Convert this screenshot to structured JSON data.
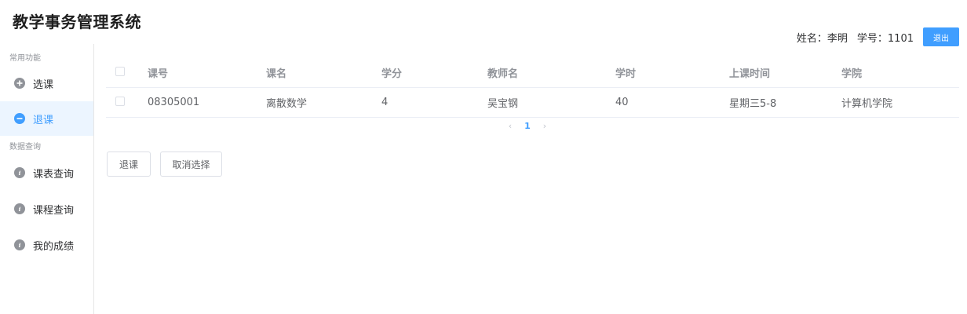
{
  "app": {
    "title": "教学事务管理系统"
  },
  "user": {
    "name_label": "姓名：",
    "name": "李明",
    "id_label": "学号：",
    "id": "1101",
    "logout_label": "退出"
  },
  "colors": {
    "accent": "#409eff",
    "active_bg": "#ecf5ff",
    "icon_gray": "#909399",
    "border": "#ebeef5"
  },
  "sidebar": {
    "groups": [
      {
        "label": "常用功能"
      },
      {
        "label": "数据查询"
      }
    ],
    "items": [
      {
        "label": "选课",
        "icon": "plus-circle-icon"
      },
      {
        "label": "退课",
        "icon": "minus-circle-icon"
      },
      {
        "label": "课表查询",
        "icon": "info-circle-icon"
      },
      {
        "label": "课程查询",
        "icon": "info-circle-icon"
      },
      {
        "label": "我的成绩",
        "icon": "info-circle-icon"
      }
    ]
  },
  "table": {
    "columns": [
      "课号",
      "课名",
      "学分",
      "教师名",
      "学时",
      "上课时间",
      "学院"
    ],
    "rows": [
      [
        "08305001",
        "离散数学",
        "4",
        "吴宝钢",
        "40",
        "星期三5-8",
        "计算机学院"
      ]
    ]
  },
  "pagination": {
    "prev": "‹",
    "current": "1",
    "next": "›"
  },
  "actions": {
    "withdraw_label": "退课",
    "clear_label": "取消选择"
  }
}
